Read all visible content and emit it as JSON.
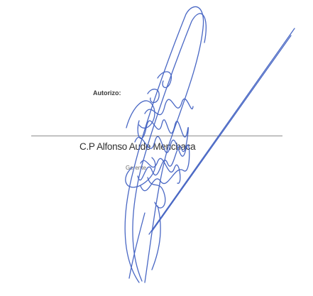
{
  "document": {
    "authorization_label": "Autorizo:",
    "signer_name": "C.P Alfonso Aude Menchaca",
    "signer_role": "Gerente",
    "ink_color": "#3a5bbf"
  }
}
